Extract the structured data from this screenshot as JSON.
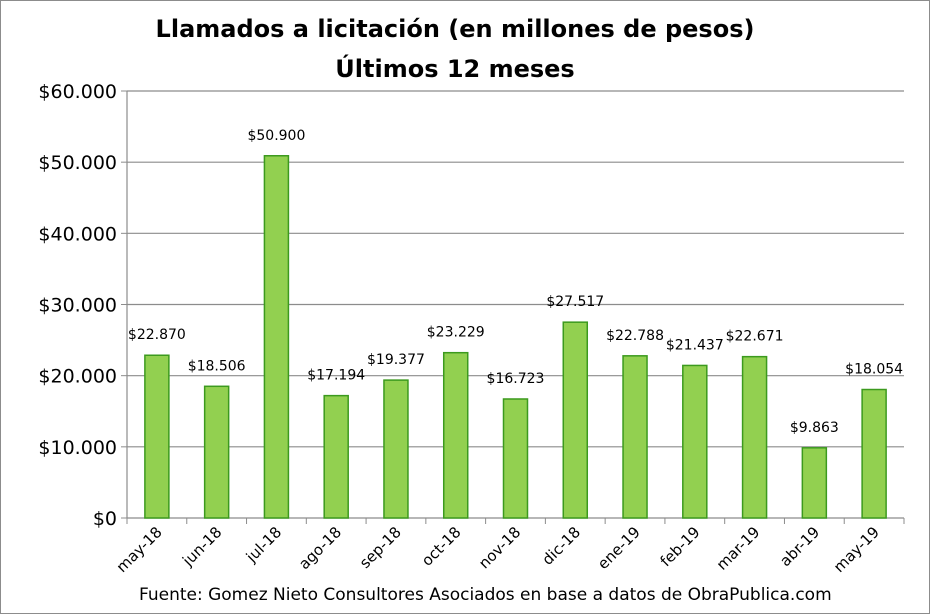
{
  "chart_data": {
    "type": "bar",
    "title": "Llamados a licitación (en millones de pesos)",
    "subtitle": "Últimos 12 meses",
    "categories": [
      "may-18",
      "jun-18",
      "jul-18",
      "ago-18",
      "sep-18",
      "oct-18",
      "nov-18",
      "dic-18",
      "ene-19",
      "feb-19",
      "mar-19",
      "abr-19",
      "may-19"
    ],
    "values": [
      22870,
      18506,
      50900,
      17194,
      19377,
      23229,
      16723,
      27517,
      22788,
      21437,
      22671,
      9863,
      18054
    ],
    "data_labels": [
      "$22.870",
      "$18.506",
      "$50.900",
      "$17.194",
      "$19.377",
      "$23.229",
      "$16.723",
      "$27.517",
      "$22.788",
      "$21.437",
      "$22.671",
      "$9.863",
      "$18.054"
    ],
    "y_ticks": [
      0,
      10000,
      20000,
      30000,
      40000,
      50000,
      60000
    ],
    "y_tick_labels": [
      "$0",
      "$10.000",
      "$20.000",
      "$30.000",
      "$40.000",
      "$50.000",
      "$60.000"
    ],
    "ylim": [
      0,
      60000
    ],
    "grid": true,
    "legend": "none",
    "bar_color": "#92d050",
    "bar_edge_color": "#3c9a1e",
    "source": "Fuente: Gomez Nieto Consultores Asociados en base a datos de ObraPublica.com"
  }
}
